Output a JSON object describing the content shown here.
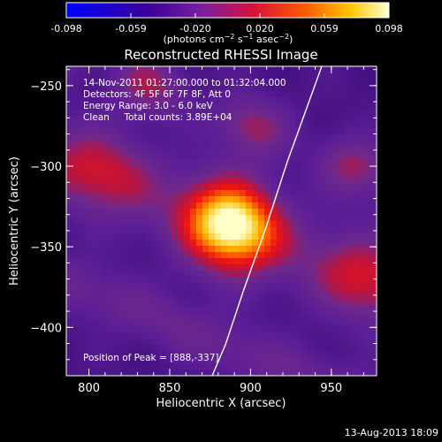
{
  "chart_data": {
    "type": "heatmap",
    "title": "Reconstructed RHESSI Image",
    "xlabel": "Heliocentric X (arcsec)",
    "ylabel": "Heliocentric Y (arcsec)",
    "xlim": [
      786,
      978
    ],
    "ylim": [
      -430,
      -238
    ],
    "x_ticks": [
      800,
      850,
      900,
      950
    ],
    "y_ticks": [
      -250,
      -300,
      -350,
      -400
    ],
    "colorbar": {
      "ticks": [
        "-0.098",
        "-0.059",
        "-0.020",
        "0.020",
        "0.059",
        "0.098"
      ],
      "range": [
        -0.098,
        0.098
      ],
      "unit_label": "(photons cm⁻² s⁻¹ asec⁻²)"
    },
    "annotations": [
      "14-Nov-2011 01:27:00.000 to 01:32:04.000",
      "Detectors: 4F 5F 6F 7F 8F, Att 0",
      "Energy Range: 3.0 - 6.0 keV",
      "Clean     Total counts: 3.89E+04"
    ],
    "peak_label": "Position of Peak = [888,-337]",
    "peak": [
      888,
      -337
    ],
    "footer_date": "13-Aug-2013 18:09"
  }
}
